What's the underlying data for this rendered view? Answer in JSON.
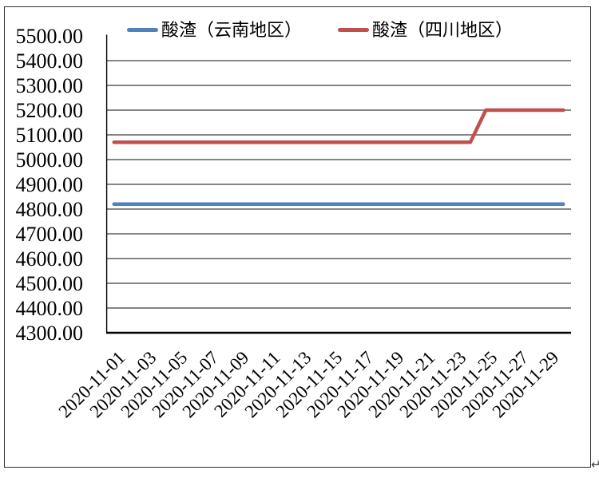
{
  "page": {
    "paragraph_mark": "↵"
  },
  "legend": {
    "items": [
      {
        "label": "酸渣（云南地区）",
        "color": "#4f81bd"
      },
      {
        "label": "酸渣（四川地区）",
        "color": "#c0504d"
      }
    ]
  },
  "chart_data": {
    "type": "line",
    "title": "",
    "xlabel": "",
    "ylabel": "",
    "grid": true,
    "legend_position": "top",
    "gridline_color": "#868686",
    "axis_color": "#000000",
    "ylim": [
      4300,
      5500
    ],
    "ytick_step": 100,
    "ytick_labels": [
      "5500.00",
      "5400.00",
      "5300.00",
      "5200.00",
      "5100.00",
      "5000.00",
      "4900.00",
      "4800.00",
      "4700.00",
      "4600.00",
      "4500.00",
      "4400.00",
      "4300.00"
    ],
    "xtick_every": 2,
    "xtick_labels": [
      "2020-11-01",
      "2020-11-03",
      "2020-11-05",
      "2020-11-07",
      "2020-11-09",
      "2020-11-11",
      "2020-11-13",
      "2020-11-15",
      "2020-11-17",
      "2020-11-19",
      "2020-11-21",
      "2020-11-23",
      "2020-11-25",
      "2020-11-27",
      "2020-11-29"
    ],
    "x": [
      "2020-11-01",
      "2020-11-02",
      "2020-11-03",
      "2020-11-04",
      "2020-11-05",
      "2020-11-06",
      "2020-11-07",
      "2020-11-08",
      "2020-11-09",
      "2020-11-10",
      "2020-11-11",
      "2020-11-12",
      "2020-11-13",
      "2020-11-14",
      "2020-11-15",
      "2020-11-16",
      "2020-11-17",
      "2020-11-18",
      "2020-11-19",
      "2020-11-20",
      "2020-11-21",
      "2020-11-22",
      "2020-11-23",
      "2020-11-24",
      "2020-11-25",
      "2020-11-26",
      "2020-11-27",
      "2020-11-28",
      "2020-11-29",
      "2020-11-30"
    ],
    "series": [
      {
        "name": "酸渣（云南地区）",
        "color": "#4f81bd",
        "values": [
          4820,
          4820,
          4820,
          4820,
          4820,
          4820,
          4820,
          4820,
          4820,
          4820,
          4820,
          4820,
          4820,
          4820,
          4820,
          4820,
          4820,
          4820,
          4820,
          4820,
          4820,
          4820,
          4820,
          4820,
          4820,
          4820,
          4820,
          4820,
          4820,
          4820
        ]
      },
      {
        "name": "酸渣（四川地区）",
        "color": "#c0504d",
        "values": [
          5070,
          5070,
          5070,
          5070,
          5070,
          5070,
          5070,
          5070,
          5070,
          5070,
          5070,
          5070,
          5070,
          5070,
          5070,
          5070,
          5070,
          5070,
          5070,
          5070,
          5070,
          5070,
          5070,
          5070,
          5200,
          5200,
          5200,
          5200,
          5200,
          5200
        ]
      }
    ]
  }
}
